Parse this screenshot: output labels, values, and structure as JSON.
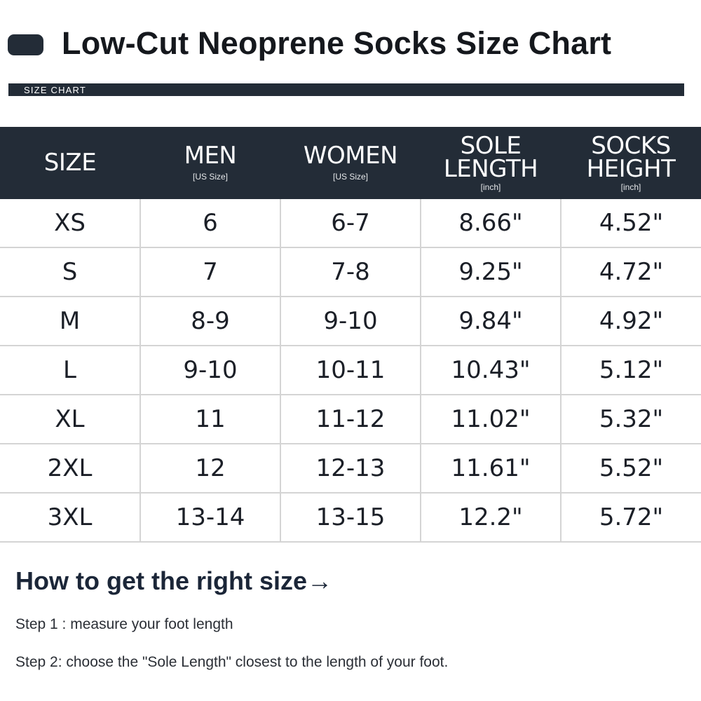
{
  "title": "Low-Cut Neoprene Socks Size Chart",
  "banner_label": "SIZE CHART",
  "colors": {
    "dark": "#232c37",
    "border": "#d4d4d4"
  },
  "table": {
    "headers": [
      {
        "main": "SIZE",
        "sub": ""
      },
      {
        "main": "MEN",
        "sub": "[US Size]"
      },
      {
        "main": "WOMEN",
        "sub": "[US Size]"
      },
      {
        "main": "SOLE\nLENGTH",
        "sub": "[inch]"
      },
      {
        "main": "SOCKS\nHEIGHT",
        "sub": "[inch]"
      }
    ],
    "rows": [
      [
        "XS",
        "6",
        "6-7",
        "8.66\"",
        "4.52\""
      ],
      [
        "S",
        "7",
        "7-8",
        "9.25\"",
        "4.72\""
      ],
      [
        "M",
        "8-9",
        "9-10",
        "9.84\"",
        "4.92\""
      ],
      [
        "L",
        "9-10",
        "10-11",
        "10.43\"",
        "5.12\""
      ],
      [
        "XL",
        "11",
        "11-12",
        "11.02\"",
        "5.32\""
      ],
      [
        "2XL",
        "12",
        "12-13",
        "11.61\"",
        "5.52\""
      ],
      [
        "3XL",
        "13-14",
        "13-15",
        "12.2\"",
        "5.72\""
      ]
    ]
  },
  "howto": {
    "heading": "How to get the right size→",
    "step1": "Step 1 : measure your foot length",
    "step2": "Step 2: choose the \"Sole Length\" closest to the length of your foot."
  }
}
